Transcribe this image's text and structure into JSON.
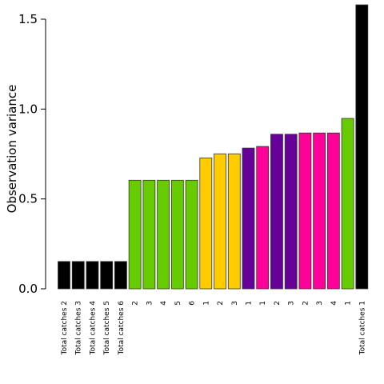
{
  "chart_data": {
    "type": "bar",
    "title": "",
    "xlabel": "",
    "ylabel": "Observation variance",
    "ylim": [
      0,
      1.5
    ],
    "yticks": [
      "0.0",
      "0.5",
      "1.0",
      "1.5"
    ],
    "categories": [
      "Total catches 2",
      "Total catches 3",
      "Total catches 4",
      "Total catches 5",
      "Total catches 6",
      "2",
      "3",
      "4",
      "5",
      "6",
      "1",
      "2",
      "3",
      "1",
      "1",
      "2",
      "3",
      "2",
      "3",
      "4",
      "1",
      "Total catches 1"
    ],
    "values": [
      0.152,
      0.152,
      0.152,
      0.152,
      0.152,
      0.604,
      0.604,
      0.604,
      0.604,
      0.604,
      0.728,
      0.751,
      0.751,
      0.783,
      0.792,
      0.86,
      0.86,
      0.867,
      0.867,
      0.867,
      0.948,
      1.58
    ],
    "colors": [
      "#000000",
      "#000000",
      "#000000",
      "#000000",
      "#000000",
      "#66CC00",
      "#66CC00",
      "#66CC00",
      "#66CC00",
      "#66CC00",
      "#FFCC00",
      "#FFCC00",
      "#FFCC00",
      "#660099",
      "#FF0099",
      "#660099",
      "#660099",
      "#FF0099",
      "#FF0099",
      "#FF0099",
      "#66CC00",
      "#000000"
    ],
    "grid": false,
    "legend": "none"
  }
}
